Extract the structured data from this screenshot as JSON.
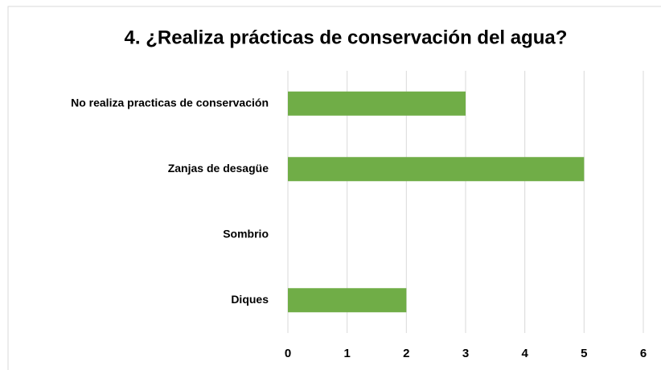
{
  "chart_data": {
    "type": "bar",
    "orientation": "horizontal",
    "title": "4. ¿Realiza prácticas de conservación del agua?",
    "categories": [
      "No realiza practicas de conservación",
      "Zanjas de desagüe",
      "Sombrio",
      "Diques"
    ],
    "values": [
      3,
      5,
      0,
      2
    ],
    "color": "#70ad47",
    "xlim": [
      0,
      6
    ],
    "xticks": [
      0,
      1,
      2,
      3,
      4,
      5,
      6
    ],
    "grid": true
  }
}
